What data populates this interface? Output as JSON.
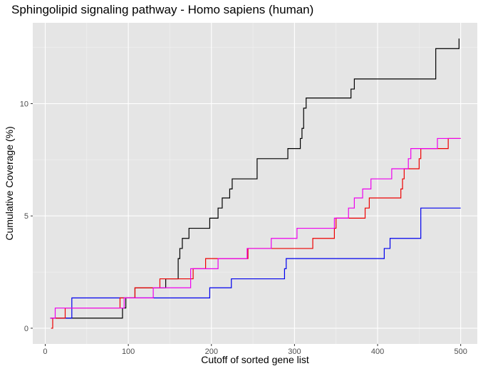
{
  "chart_data": {
    "type": "line",
    "title": "Sphingolipid signaling pathway - Homo sapiens (human)",
    "xlabel": "Cutoff of sorted gene list",
    "ylabel": "Cumulative Coverage (%)",
    "xlim": [
      -15,
      520
    ],
    "ylim": [
      -0.7,
      13.6
    ],
    "x_ticks": [
      0,
      100,
      200,
      300,
      400,
      500
    ],
    "x_tick_labels": [
      "0",
      "100",
      "200",
      "300",
      "400",
      "500"
    ],
    "y_ticks": [
      0,
      5,
      10
    ],
    "y_tick_labels": [
      "0",
      "5",
      "10"
    ],
    "grid": true,
    "legend": "none",
    "series": [
      {
        "color": "#000000",
        "points": [
          [
            6,
            0.45
          ],
          [
            93,
            0.45
          ],
          [
            93,
            0.9
          ],
          [
            97,
            0.9
          ],
          [
            97,
            1.35
          ],
          [
            108,
            1.35
          ],
          [
            108,
            1.8
          ],
          [
            145,
            1.8
          ],
          [
            145,
            2.2
          ],
          [
            160,
            2.2
          ],
          [
            160,
            3.1
          ],
          [
            162,
            3.1
          ],
          [
            162,
            3.55
          ],
          [
            165,
            3.55
          ],
          [
            165,
            4.0
          ],
          [
            173,
            4.0
          ],
          [
            173,
            4.45
          ],
          [
            198,
            4.45
          ],
          [
            198,
            4.9
          ],
          [
            208,
            4.9
          ],
          [
            208,
            5.35
          ],
          [
            213,
            5.35
          ],
          [
            213,
            5.8
          ],
          [
            222,
            5.8
          ],
          [
            222,
            6.2
          ],
          [
            225,
            6.2
          ],
          [
            225,
            6.65
          ],
          [
            255,
            6.65
          ],
          [
            255,
            7.55
          ],
          [
            292,
            7.55
          ],
          [
            292,
            8.0
          ],
          [
            307,
            8.0
          ],
          [
            307,
            8.45
          ],
          [
            309,
            8.45
          ],
          [
            309,
            8.9
          ],
          [
            311,
            8.9
          ],
          [
            311,
            9.8
          ],
          [
            314,
            9.8
          ],
          [
            314,
            10.25
          ],
          [
            368,
            10.25
          ],
          [
            368,
            10.65
          ],
          [
            372,
            10.65
          ],
          [
            372,
            11.1
          ],
          [
            470,
            11.1
          ],
          [
            470,
            12.45
          ],
          [
            498,
            12.45
          ],
          [
            498,
            12.9
          ]
        ]
      },
      {
        "color": "#0000ee",
        "points": [
          [
            8,
            0.45
          ],
          [
            32,
            0.45
          ],
          [
            32,
            1.35
          ],
          [
            198,
            1.35
          ],
          [
            198,
            1.8
          ],
          [
            224,
            1.8
          ],
          [
            224,
            2.2
          ],
          [
            288,
            2.2
          ],
          [
            288,
            2.65
          ],
          [
            290,
            2.65
          ],
          [
            290,
            3.1
          ],
          [
            408,
            3.1
          ],
          [
            408,
            3.55
          ],
          [
            415,
            3.55
          ],
          [
            415,
            4.0
          ],
          [
            452,
            4.0
          ],
          [
            452,
            5.35
          ],
          [
            500,
            5.35
          ]
        ]
      },
      {
        "color": "#ee0000",
        "points": [
          [
            7,
            0.0
          ],
          [
            9,
            0.0
          ],
          [
            9,
            0.45
          ],
          [
            24,
            0.45
          ],
          [
            24,
            0.9
          ],
          [
            90,
            0.9
          ],
          [
            90,
            1.35
          ],
          [
            108,
            1.35
          ],
          [
            108,
            1.8
          ],
          [
            138,
            1.8
          ],
          [
            138,
            2.2
          ],
          [
            178,
            2.2
          ],
          [
            178,
            2.65
          ],
          [
            193,
            2.65
          ],
          [
            193,
            3.1
          ],
          [
            244,
            3.1
          ],
          [
            244,
            3.55
          ],
          [
            322,
            3.55
          ],
          [
            322,
            4.0
          ],
          [
            348,
            4.0
          ],
          [
            348,
            4.45
          ],
          [
            350,
            4.45
          ],
          [
            350,
            4.9
          ],
          [
            385,
            4.9
          ],
          [
            385,
            5.35
          ],
          [
            390,
            5.35
          ],
          [
            390,
            5.8
          ],
          [
            428,
            5.8
          ],
          [
            428,
            6.2
          ],
          [
            430,
            6.2
          ],
          [
            430,
            6.65
          ],
          [
            432,
            6.65
          ],
          [
            432,
            7.1
          ],
          [
            450,
            7.1
          ],
          [
            450,
            7.55
          ],
          [
            452,
            7.55
          ],
          [
            452,
            8.0
          ],
          [
            485,
            8.0
          ],
          [
            485,
            8.45
          ],
          [
            500,
            8.45
          ]
        ]
      },
      {
        "color": "#ee00ee",
        "points": [
          [
            6,
            0.45
          ],
          [
            12,
            0.45
          ],
          [
            12,
            0.9
          ],
          [
            95,
            0.9
          ],
          [
            95,
            1.35
          ],
          [
            130,
            1.35
          ],
          [
            130,
            1.8
          ],
          [
            175,
            1.8
          ],
          [
            175,
            2.65
          ],
          [
            208,
            2.65
          ],
          [
            208,
            3.1
          ],
          [
            243,
            3.1
          ],
          [
            243,
            3.55
          ],
          [
            272,
            3.55
          ],
          [
            272,
            4.0
          ],
          [
            303,
            4.0
          ],
          [
            303,
            4.45
          ],
          [
            348,
            4.45
          ],
          [
            348,
            4.9
          ],
          [
            365,
            4.9
          ],
          [
            365,
            5.35
          ],
          [
            372,
            5.35
          ],
          [
            372,
            5.8
          ],
          [
            382,
            5.8
          ],
          [
            382,
            6.2
          ],
          [
            392,
            6.2
          ],
          [
            392,
            6.65
          ],
          [
            417,
            6.65
          ],
          [
            417,
            7.1
          ],
          [
            437,
            7.1
          ],
          [
            437,
            7.55
          ],
          [
            440,
            7.55
          ],
          [
            440,
            8.0
          ],
          [
            472,
            8.0
          ],
          [
            472,
            8.45
          ],
          [
            500,
            8.45
          ]
        ]
      }
    ]
  }
}
